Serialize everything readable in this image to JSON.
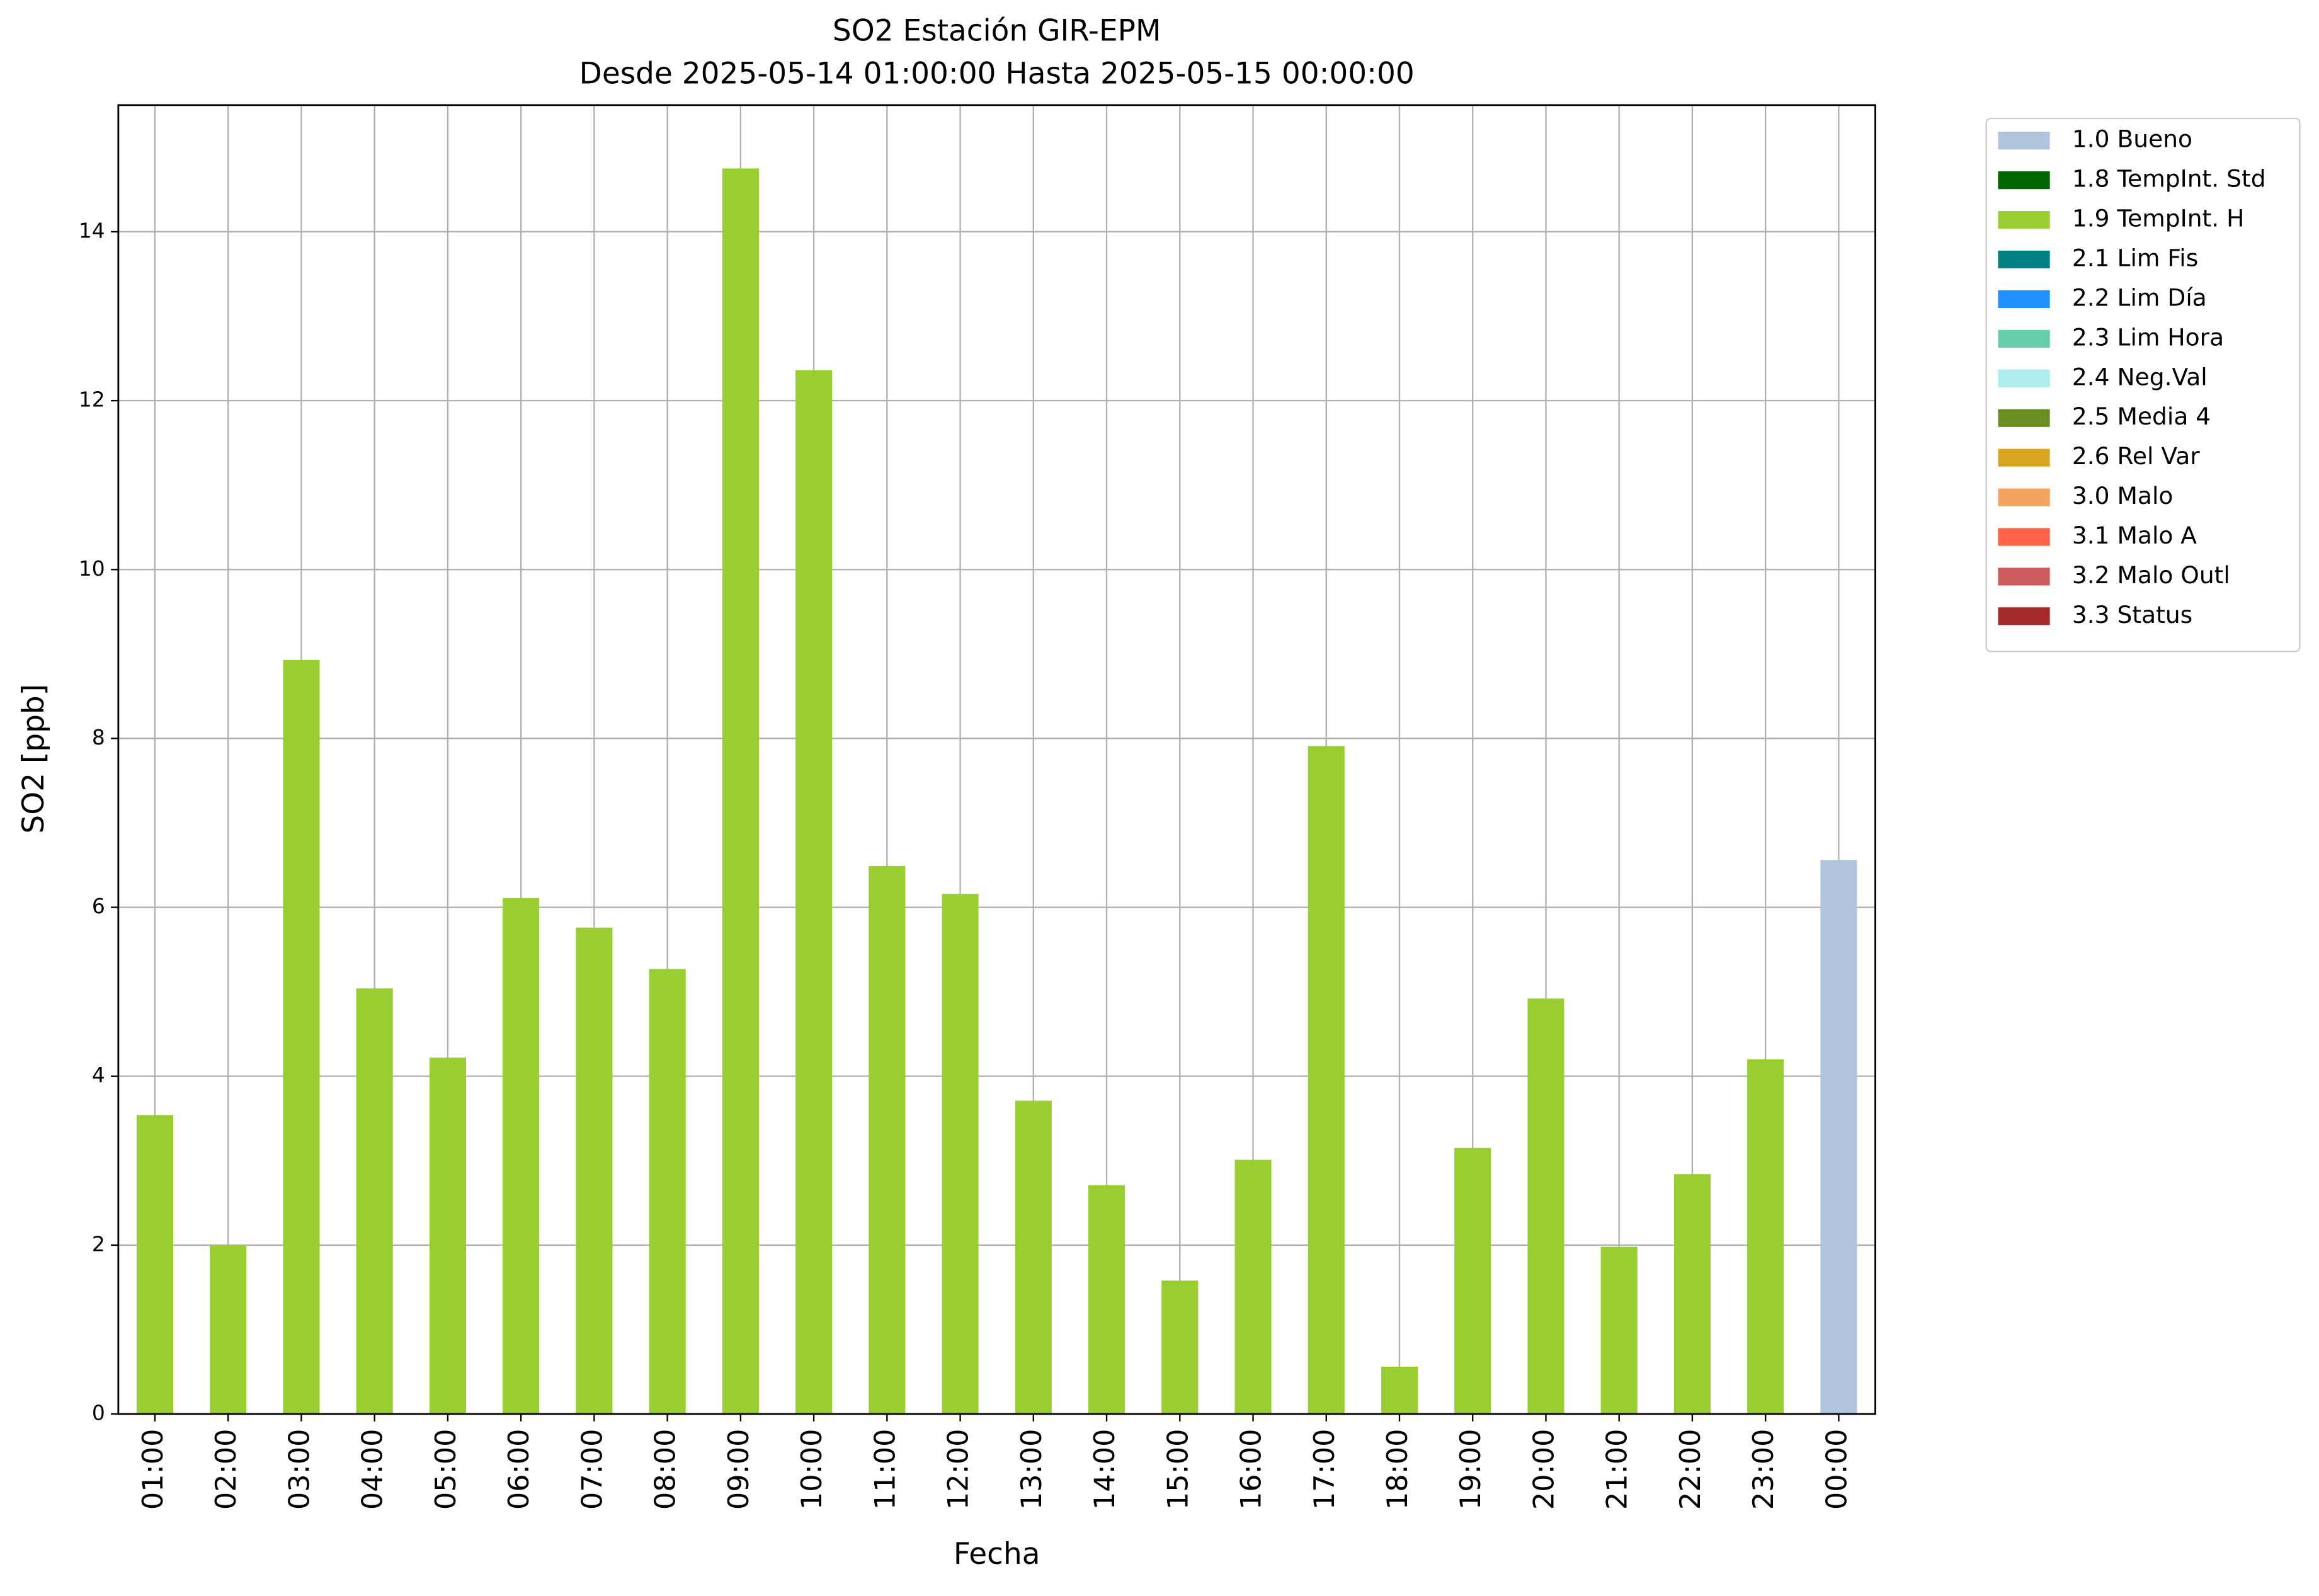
{
  "chart_data": {
    "type": "stacked_bar",
    "title": "SO2 Estación GIR-EPM",
    "subtitle": "Desde 2025-05-14 01:00:00 Hasta 2025-05-15 00:00:00",
    "x_label": "Fecha",
    "y_label": "SO2 [ppb]",
    "categories": [
      "01:00",
      "02:00",
      "03:00",
      "04:00",
      "05:00",
      "06:00",
      "07:00",
      "08:00",
      "09:00",
      "10:00",
      "11:00",
      "12:00",
      "13:00",
      "14:00",
      "15:00",
      "16:00",
      "17:00",
      "18:00",
      "19:00",
      "20:00",
      "21:00",
      "22:00",
      "23:00",
      "00:00"
    ],
    "ylim": [
      0,
      15.5
    ],
    "yticks": [
      0,
      2,
      4,
      6,
      8,
      10,
      12,
      14
    ],
    "grid": true,
    "legend": "outside-right",
    "series": [
      {
        "name": "1.0 Bueno",
        "color": "#b0c4de",
        "values": [
          null,
          null,
          null,
          null,
          null,
          null,
          null,
          null,
          null,
          null,
          null,
          null,
          null,
          null,
          null,
          null,
          null,
          null,
          null,
          null,
          null,
          null,
          null,
          6.56
        ]
      },
      {
        "name": "1.8 TempInt. Std",
        "color": "#006400",
        "values": [
          null,
          null,
          null,
          null,
          null,
          null,
          null,
          null,
          null,
          null,
          null,
          null,
          null,
          null,
          null,
          null,
          null,
          null,
          null,
          null,
          null,
          null,
          null,
          null
        ]
      },
      {
        "name": "1.9 TempInt. H",
        "color": "#9acd32",
        "values": [
          3.54,
          2.0,
          8.93,
          5.04,
          4.22,
          6.11,
          5.76,
          5.27,
          14.75,
          12.36,
          6.49,
          6.16,
          3.71,
          2.71,
          1.58,
          3.01,
          7.91,
          0.56,
          3.15,
          4.92,
          1.98,
          2.84,
          4.2,
          null
        ]
      },
      {
        "name": "2.1 Lim Fis",
        "color": "#008080",
        "values": [
          null,
          null,
          null,
          null,
          null,
          null,
          null,
          null,
          null,
          null,
          null,
          null,
          null,
          null,
          null,
          null,
          null,
          null,
          null,
          null,
          null,
          null,
          null,
          null
        ]
      },
      {
        "name": "2.2 Lim Día",
        "color": "#1e90ff",
        "values": [
          null,
          null,
          null,
          null,
          null,
          null,
          null,
          null,
          null,
          null,
          null,
          null,
          null,
          null,
          null,
          null,
          null,
          null,
          null,
          null,
          null,
          null,
          null,
          null
        ]
      },
      {
        "name": "2.3 Lim Hora",
        "color": "#66cdaa",
        "values": [
          null,
          null,
          null,
          null,
          null,
          null,
          null,
          null,
          null,
          null,
          null,
          null,
          null,
          null,
          null,
          null,
          null,
          null,
          null,
          null,
          null,
          null,
          null,
          null
        ]
      },
      {
        "name": "2.4 Neg.Val",
        "color": "#afeeee",
        "values": [
          null,
          null,
          null,
          null,
          null,
          null,
          null,
          null,
          null,
          null,
          null,
          null,
          null,
          null,
          null,
          null,
          null,
          null,
          null,
          null,
          null,
          null,
          null,
          null
        ]
      },
      {
        "name": "2.5 Media 4",
        "color": "#6b8e23",
        "values": [
          null,
          null,
          null,
          null,
          null,
          null,
          null,
          null,
          null,
          null,
          null,
          null,
          null,
          null,
          null,
          null,
          null,
          null,
          null,
          null,
          null,
          null,
          null,
          null
        ]
      },
      {
        "name": "2.6 Rel Var",
        "color": "#daa520",
        "values": [
          null,
          null,
          null,
          null,
          null,
          null,
          null,
          null,
          null,
          null,
          null,
          null,
          null,
          null,
          null,
          null,
          null,
          null,
          null,
          null,
          null,
          null,
          null,
          null
        ]
      },
      {
        "name": "3.0 Malo",
        "color": "#f4a460",
        "values": [
          null,
          null,
          null,
          null,
          null,
          null,
          null,
          null,
          null,
          null,
          null,
          null,
          null,
          null,
          null,
          null,
          null,
          null,
          null,
          null,
          null,
          null,
          null,
          null
        ]
      },
      {
        "name": "3.1 Malo A",
        "color": "#ff6347",
        "values": [
          null,
          null,
          null,
          null,
          null,
          null,
          null,
          null,
          null,
          null,
          null,
          null,
          null,
          null,
          null,
          null,
          null,
          null,
          null,
          null,
          null,
          null,
          null,
          null
        ]
      },
      {
        "name": "3.2 Malo Outl",
        "color": "#cd5c5c",
        "values": [
          null,
          null,
          null,
          null,
          null,
          null,
          null,
          null,
          null,
          null,
          null,
          null,
          null,
          null,
          null,
          null,
          null,
          null,
          null,
          null,
          null,
          null,
          null,
          null
        ]
      },
      {
        "name": "3.3 Status",
        "color": "#a52a2a",
        "values": [
          null,
          null,
          null,
          null,
          null,
          null,
          null,
          null,
          null,
          null,
          null,
          null,
          null,
          null,
          null,
          null,
          null,
          null,
          null,
          null,
          null,
          null,
          null,
          null
        ]
      }
    ]
  }
}
